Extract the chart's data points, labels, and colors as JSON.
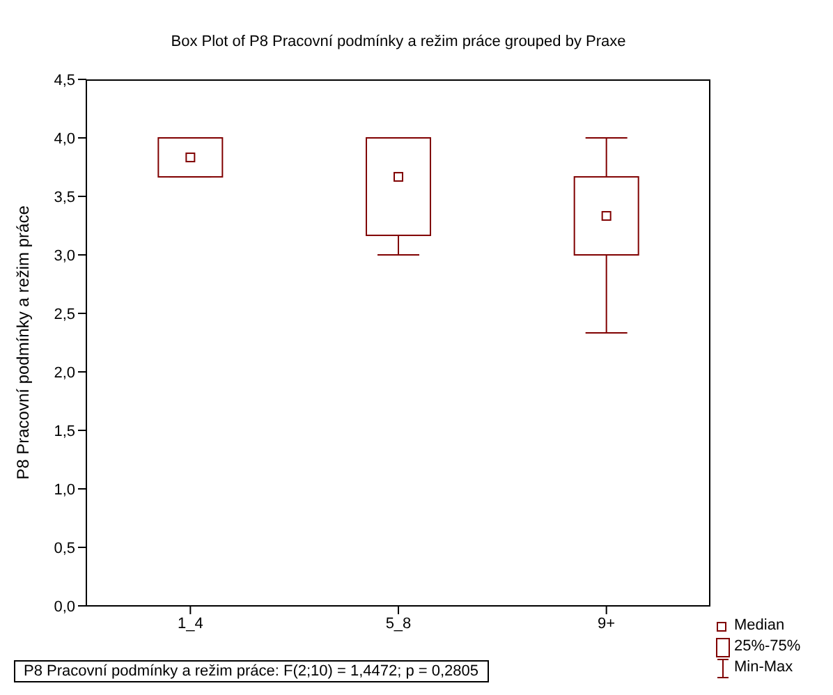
{
  "chart_data": {
    "type": "box",
    "title": "Box Plot of P8 Pracovní podmínky a režim práce grouped by  Praxe",
    "ylabel": "P8 Pracovní podmínky a režim práce",
    "categories": [
      "1_4",
      "5_8",
      "9+"
    ],
    "series": [
      {
        "color": "#800000",
        "boxes": [
          {
            "low": 3.667,
            "q1": 3.667,
            "median": 3.833,
            "q3": 4.0,
            "high": 4.0
          },
          {
            "low": 3.0,
            "q1": 3.167,
            "median": 3.667,
            "q3": 4.0,
            "high": 4.0
          },
          {
            "low": 2.333,
            "q1": 3.0,
            "median": 3.333,
            "q3": 3.667,
            "high": 4.0
          }
        ]
      }
    ],
    "ylim": [
      0,
      4.5
    ],
    "yticks": [
      {
        "value": 0,
        "label": "0,0"
      },
      {
        "value": 0.5,
        "label": "0,5"
      },
      {
        "value": 1,
        "label": "1,0"
      },
      {
        "value": 1.5,
        "label": "1,5"
      },
      {
        "value": 2,
        "label": "2,0"
      },
      {
        "value": 2.5,
        "label": "2,5"
      },
      {
        "value": 3,
        "label": "3,0"
      },
      {
        "value": 3.5,
        "label": "3,5"
      },
      {
        "value": 4,
        "label": "4,0"
      },
      {
        "value": 4.5,
        "label": "4,5"
      }
    ],
    "annotations": [
      "Median",
      "25%-75%",
      "Min-Max",
      "P8 Pracovní podmínky a režim práce:  F(2;10) = 1,4472; p = 0,2805"
    ]
  }
}
